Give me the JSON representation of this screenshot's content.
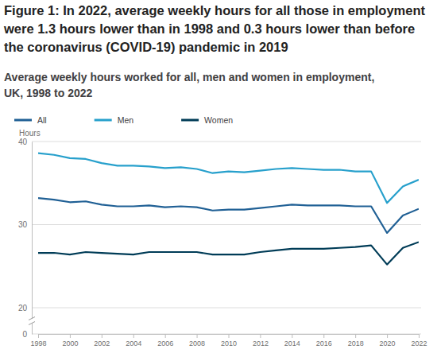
{
  "chart_data": {
    "type": "line",
    "title": "Figure 1: In 2022, average weekly hours for all those in employment were 1.3 hours lower than in 1998 and 0.3 hours lower than before the coronavirus (COVID-19) pandemic in 2019",
    "subtitle": "Average weekly hours worked for all, men and women in employment, UK, 1998 to 2022",
    "y_label": "Hours",
    "x": [
      1998,
      1999,
      2000,
      2001,
      2002,
      2003,
      2004,
      2005,
      2006,
      2007,
      2008,
      2009,
      2010,
      2011,
      2012,
      2013,
      2014,
      2015,
      2016,
      2017,
      2018,
      2019,
      2020,
      2021,
      2022
    ],
    "series": [
      {
        "name": "All",
        "color": "#206095",
        "values": [
          33.2,
          33.0,
          32.7,
          32.8,
          32.4,
          32.2,
          32.2,
          32.3,
          32.1,
          32.2,
          32.1,
          31.7,
          31.8,
          31.8,
          32.0,
          32.2,
          32.4,
          32.3,
          32.3,
          32.3,
          32.2,
          32.2,
          29.0,
          31.1,
          31.9
        ]
      },
      {
        "name": "Men",
        "color": "#27a0cc",
        "values": [
          38.6,
          38.4,
          38.0,
          37.9,
          37.4,
          37.1,
          37.1,
          37.0,
          36.8,
          36.9,
          36.7,
          36.2,
          36.4,
          36.3,
          36.5,
          36.7,
          36.8,
          36.7,
          36.6,
          36.6,
          36.4,
          36.4,
          32.6,
          34.6,
          35.4
        ]
      },
      {
        "name": "Women",
        "color": "#003c57",
        "values": [
          26.6,
          26.6,
          26.4,
          26.7,
          26.6,
          26.5,
          26.4,
          26.7,
          26.7,
          26.7,
          26.7,
          26.4,
          26.4,
          26.4,
          26.7,
          26.9,
          27.1,
          27.1,
          27.1,
          27.2,
          27.3,
          27.5,
          25.2,
          27.2,
          27.9
        ]
      }
    ],
    "xlim": [
      1998,
      2022
    ],
    "xticks": [
      1998,
      2000,
      2002,
      2004,
      2006,
      2008,
      2010,
      2012,
      2014,
      2016,
      2018,
      2020,
      2022
    ],
    "ylim": [
      0,
      40
    ],
    "yticks": [
      0,
      20,
      30,
      40
    ],
    "grid": true,
    "legend": "top-left"
  }
}
